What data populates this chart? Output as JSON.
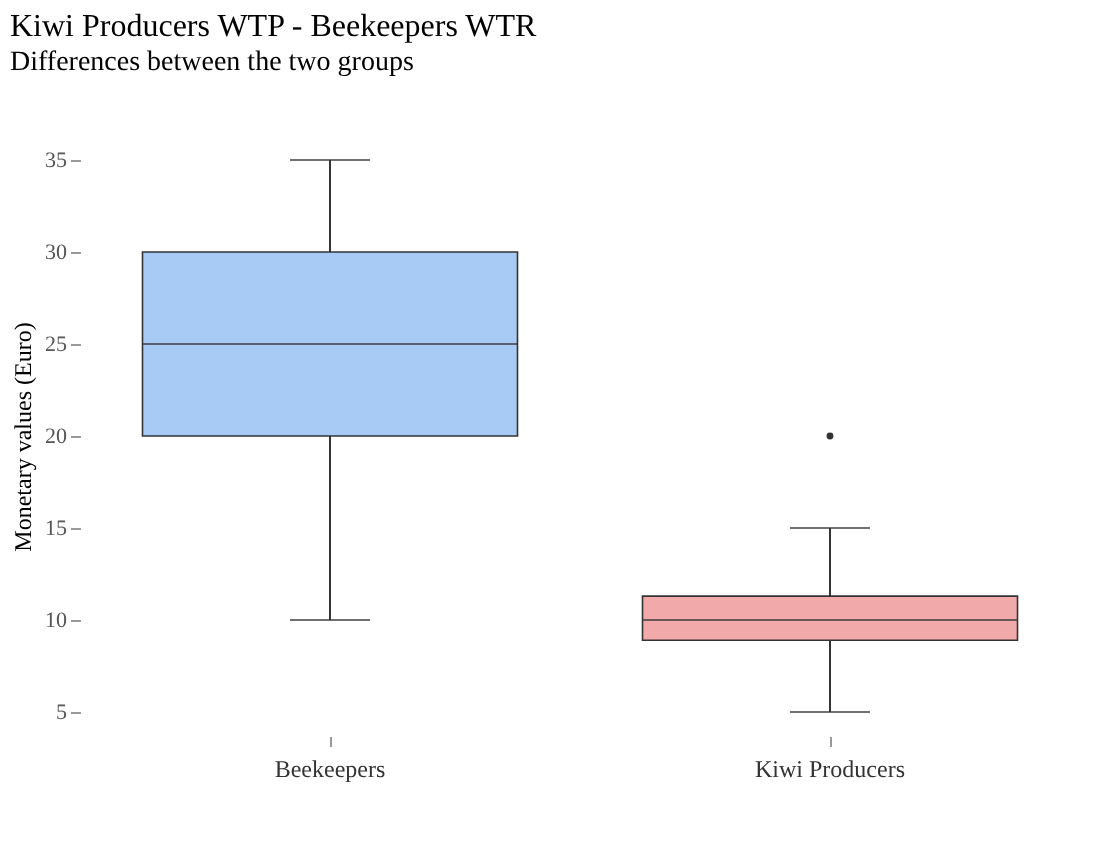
{
  "chart_data": {
    "type": "box",
    "title": "Kiwi Producers WTP - Beekeepers WTR",
    "subtitle": "Differences between the two groups",
    "ylabel": "Monetary values (Euro)",
    "categories": [
      "Beekeepers",
      "Kiwi Producers"
    ],
    "colors": [
      "#a8cbf5",
      "#f2a9aa"
    ],
    "boxes": [
      {
        "low": 10,
        "q1": 20,
        "median": 25,
        "q3": 30,
        "high": 35
      },
      {
        "low": 5,
        "q1": 8.9,
        "median": 10,
        "q3": 11.3,
        "high": 15,
        "outliers": [
          20
        ]
      }
    ],
    "ylim": [
      5,
      35
    ],
    "yticks": [
      5,
      10,
      15,
      20,
      25,
      30,
      35
    ],
    "grid": false
  }
}
